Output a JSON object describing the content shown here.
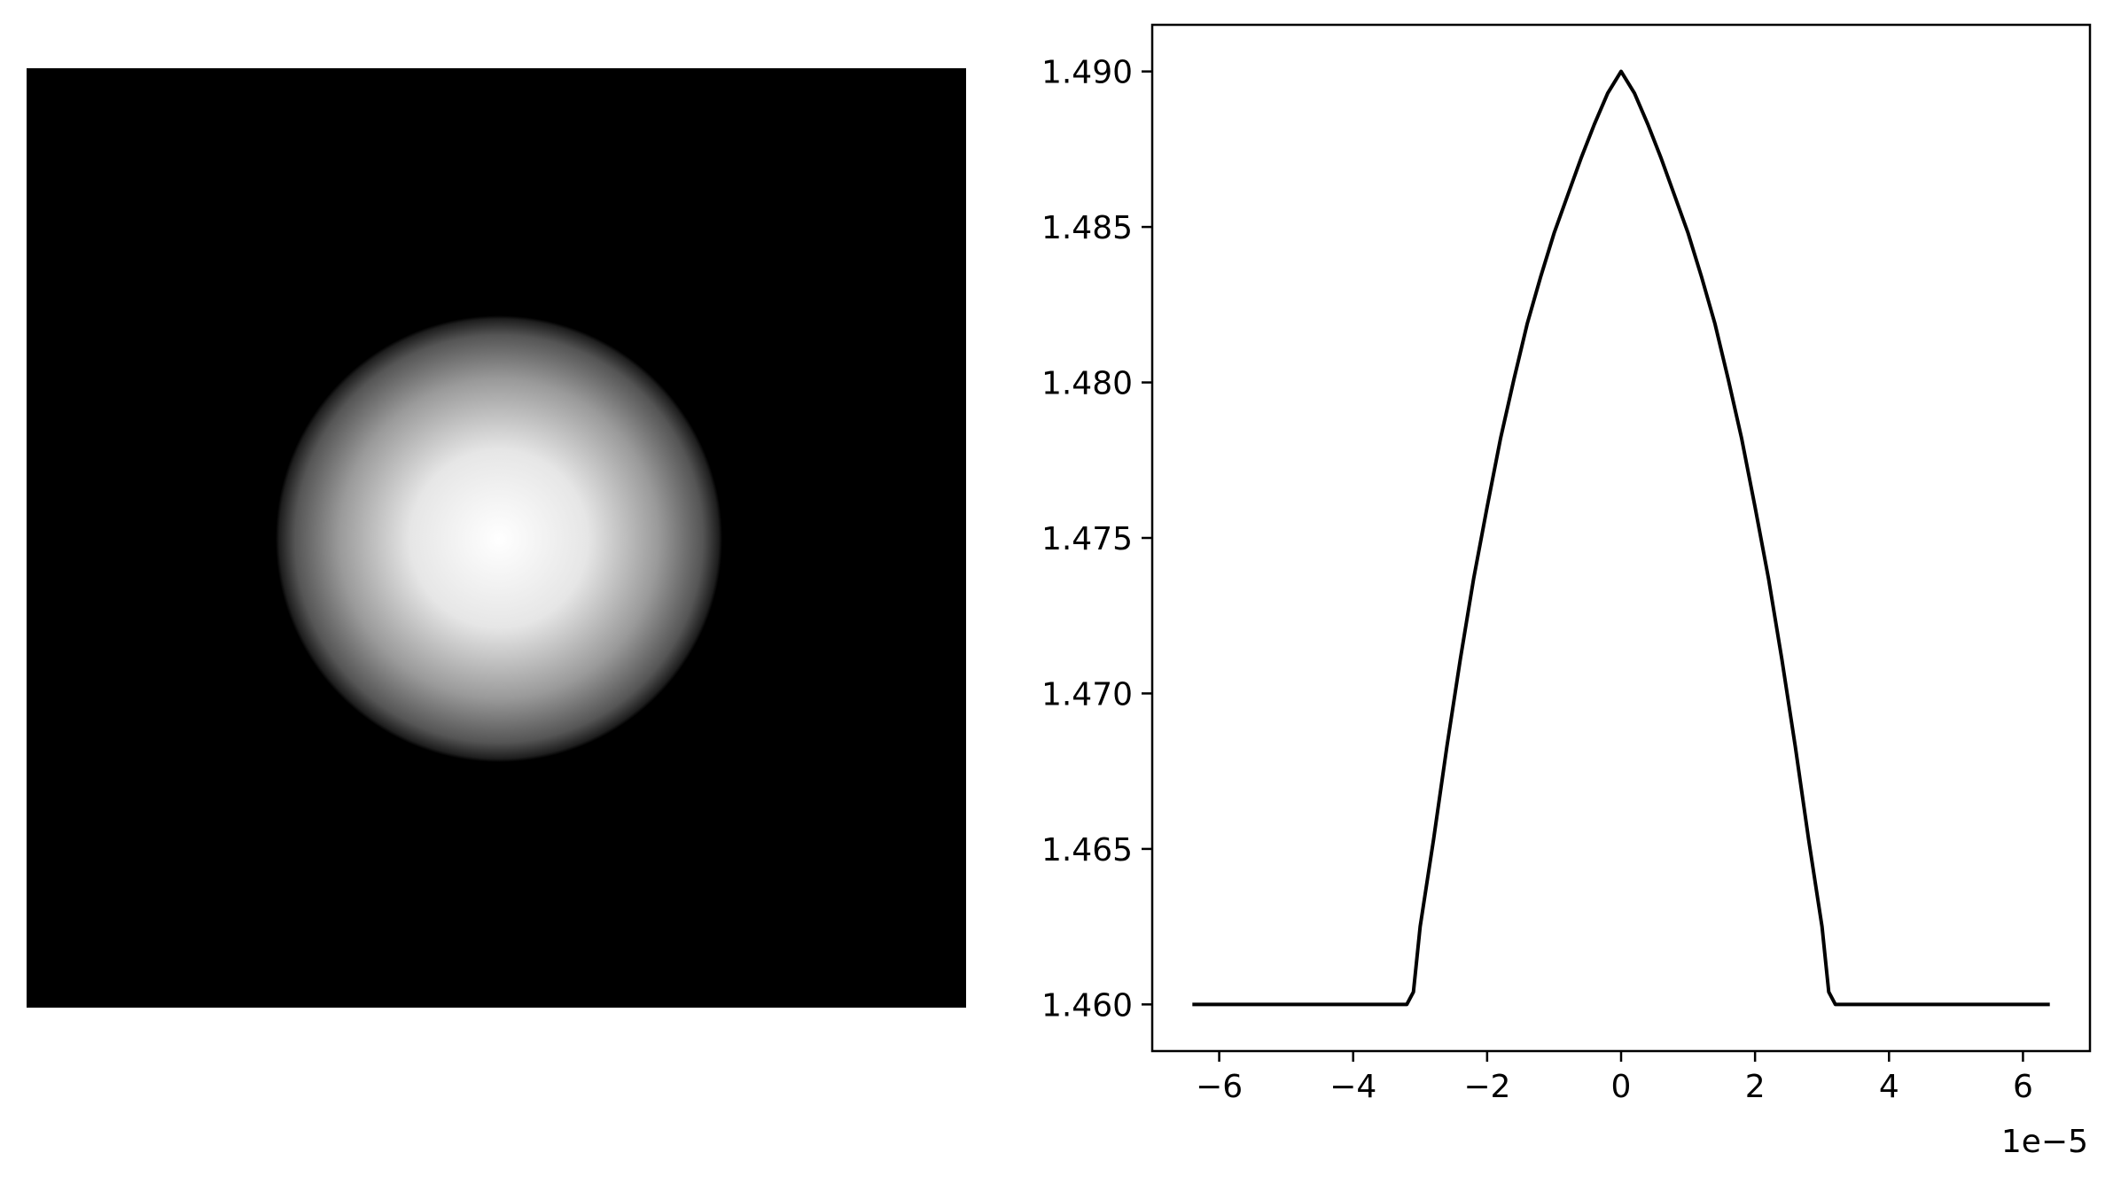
{
  "chart_data": [
    {
      "type": "heatmap",
      "description_colormap": "gray",
      "grid": false,
      "axes_visible": false,
      "shape": "circular radial gradient",
      "center": [
        0,
        0
      ],
      "radius": 3.1e-05,
      "extent": [
        -6.4e-05,
        6.4e-05,
        -6.4e-05,
        6.4e-05
      ],
      "value_range": [
        1.46,
        1.49
      ],
      "colors": {
        "background": "#000000",
        "peak": "#ffffff"
      }
    },
    {
      "type": "line",
      "title": "",
      "xlabel": "",
      "ylabel": "",
      "x_offset_label": "1e−5",
      "xlim": [
        -7e-05,
        7e-05
      ],
      "ylim": [
        1.4585,
        1.4915
      ],
      "grid": false,
      "xticks": [
        -6e-05,
        -4e-05,
        -2e-05,
        0,
        2e-05,
        4e-05,
        6e-05
      ],
      "xtick_labels": [
        "−6",
        "−4",
        "−2",
        "0",
        "2",
        "4",
        "6"
      ],
      "yticks": [
        1.46,
        1.465,
        1.47,
        1.475,
        1.48,
        1.485,
        1.49
      ],
      "ytick_labels": [
        "1.460",
        "1.465",
        "1.470",
        "1.475",
        "1.480",
        "1.485",
        "1.490"
      ],
      "line_color": "#000000",
      "series": [
        {
          "x": [
            -6.4e-05,
            -3.2e-05,
            -3.1e-05,
            -3e-05,
            -2.8e-05,
            -2.6e-05,
            -2.4e-05,
            -2.2e-05,
            -2e-05,
            -1.8e-05,
            -1.6e-05,
            -1.4e-05,
            -1.2e-05,
            -1e-05,
            -8e-06,
            -6e-06,
            -4e-06,
            -2e-06,
            0,
            2e-06,
            4e-06,
            6e-06,
            8e-06,
            1e-05,
            1.2e-05,
            1.4e-05,
            1.6e-05,
            1.8e-05,
            2e-05,
            2.2e-05,
            2.4e-05,
            2.6e-05,
            2.8e-05,
            3e-05,
            3.1e-05,
            3.2e-05,
            6.4e-05
          ],
          "y": [
            1.46,
            1.46,
            1.4604,
            1.4625,
            1.4653,
            1.4683,
            1.4711,
            1.4737,
            1.476,
            1.4782,
            1.4801,
            1.4819,
            1.4834,
            1.4848,
            1.486,
            1.4872,
            1.4883,
            1.4893,
            1.49,
            1.4893,
            1.4883,
            1.4872,
            1.486,
            1.4848,
            1.4834,
            1.4819,
            1.4801,
            1.4782,
            1.476,
            1.4737,
            1.4711,
            1.4683,
            1.4653,
            1.4625,
            1.4604,
            1.46,
            1.46
          ]
        }
      ]
    }
  ]
}
